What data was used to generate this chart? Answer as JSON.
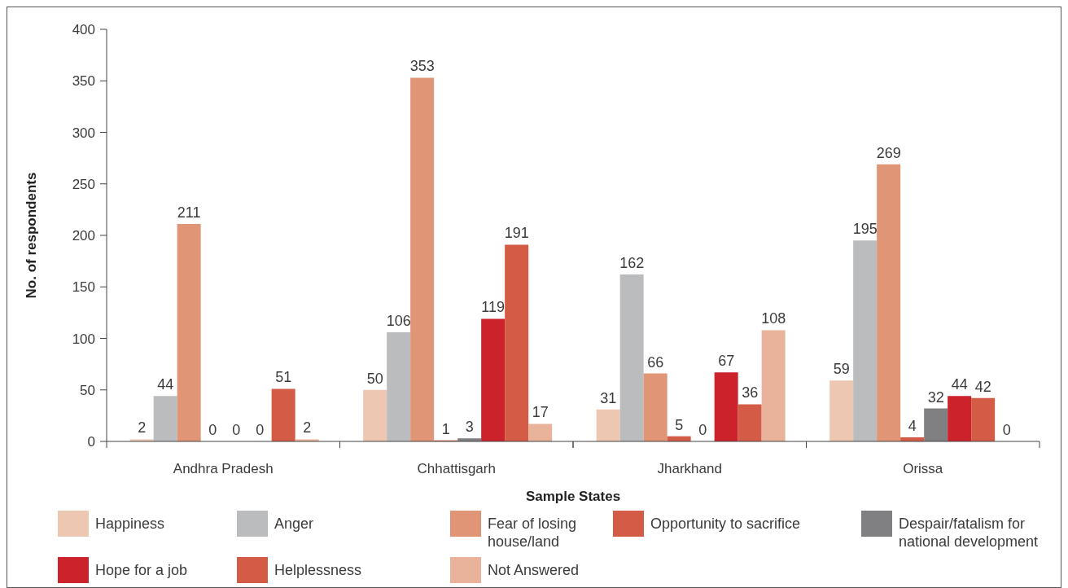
{
  "chart_data": {
    "type": "bar",
    "xlabel": "Sample States",
    "ylabel": "No. of respondents",
    "categories": [
      "Andhra Pradesh",
      "Chhattisgarh",
      "Jharkhand",
      "Orissa"
    ],
    "series": [
      {
        "name": "Happiness",
        "color": "#edc7b2",
        "values": [
          2,
          50,
          31,
          59
        ]
      },
      {
        "name": "Anger",
        "color": "#bbbcbe",
        "values": [
          44,
          106,
          162,
          195
        ]
      },
      {
        "name": "Fear of losing house/land",
        "color": "#e09577",
        "values": [
          211,
          353,
          66,
          269
        ]
      },
      {
        "name": "Opportunity to sacrifice",
        "color": "#d45b46",
        "values": [
          0,
          1,
          5,
          4
        ]
      },
      {
        "name": "Despair/fatalism for national development",
        "color": "#808082",
        "values": [
          0,
          3,
          0,
          32
        ]
      },
      {
        "name": "Hope for a job",
        "color": "#cc222b",
        "values": [
          0,
          119,
          67,
          44
        ]
      },
      {
        "name": "Helplessness",
        "color": "#d45b46",
        "values": [
          51,
          191,
          36,
          42
        ]
      },
      {
        "name": "Not Answered",
        "color": "#e8b39a",
        "values": [
          2,
          17,
          108,
          0
        ]
      }
    ],
    "ylim": [
      0,
      400
    ],
    "yticks": [
      0,
      50,
      100,
      150,
      200,
      250,
      300,
      350,
      400
    ],
    "legend": "bottom",
    "data_labels": true
  }
}
